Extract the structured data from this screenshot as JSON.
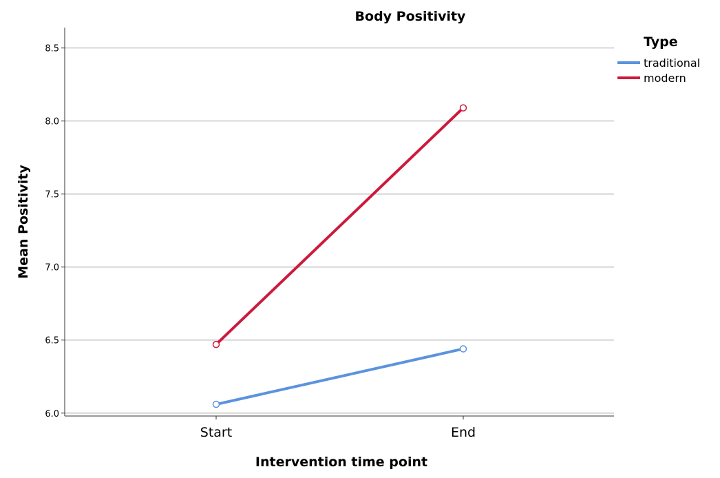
{
  "chart_data": {
    "type": "line",
    "title": "Body Positivity",
    "xlabel": "Intervention time point",
    "ylabel": "Mean Positivity",
    "categories": [
      "Start",
      "End"
    ],
    "ylim": [
      5.98,
      8.64
    ],
    "yticks": [
      "6.0",
      "6.5",
      "7.0",
      "7.5",
      "8.0",
      "8.5"
    ],
    "grid": true,
    "legend": {
      "title": "Type",
      "placement": "top-right"
    },
    "series": [
      {
        "name": "traditional",
        "values": [
          6.06,
          6.44
        ],
        "color": "#5b93de"
      },
      {
        "name": "modern",
        "values": [
          6.47,
          8.09
        ],
        "color": "#cc1a3d"
      }
    ]
  }
}
